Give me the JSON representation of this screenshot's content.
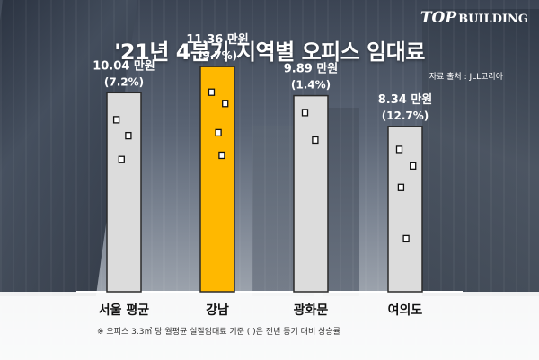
{
  "logo": {
    "big": "TOP",
    "small": "BUILDING"
  },
  "title": "'21년 4분기 지역별 오피스 임대료",
  "source": "자료 출처 : JLL코리아",
  "footnote": "※ 오피스 3.3㎡ 당 월평균 실질임대료 기준 (  )은 전년 동기 대비 상승률",
  "colors": {
    "highlight": "#ffb800",
    "bar": "#dcdcdc",
    "bar_border": "#2a2a2a"
  },
  "chart_data": {
    "type": "bar",
    "title": "'21년 4분기 지역별 오피스 임대료",
    "categories": [
      "서울 평균",
      "강남",
      "광화문",
      "여의도"
    ],
    "values": [
      10.04,
      11.36,
      9.89,
      8.34
    ],
    "value_labels": [
      "10.04 만원",
      "11.36 만원",
      "9.89 만원",
      "8.34 만원"
    ],
    "growth_labels": [
      "(7.2%)",
      "(9.7%)",
      "(1.4%)",
      "(12.7%)"
    ],
    "highlight_index": 1,
    "unit": "만원",
    "ylim": [
      0,
      12
    ],
    "xlabel": "",
    "ylabel": ""
  }
}
